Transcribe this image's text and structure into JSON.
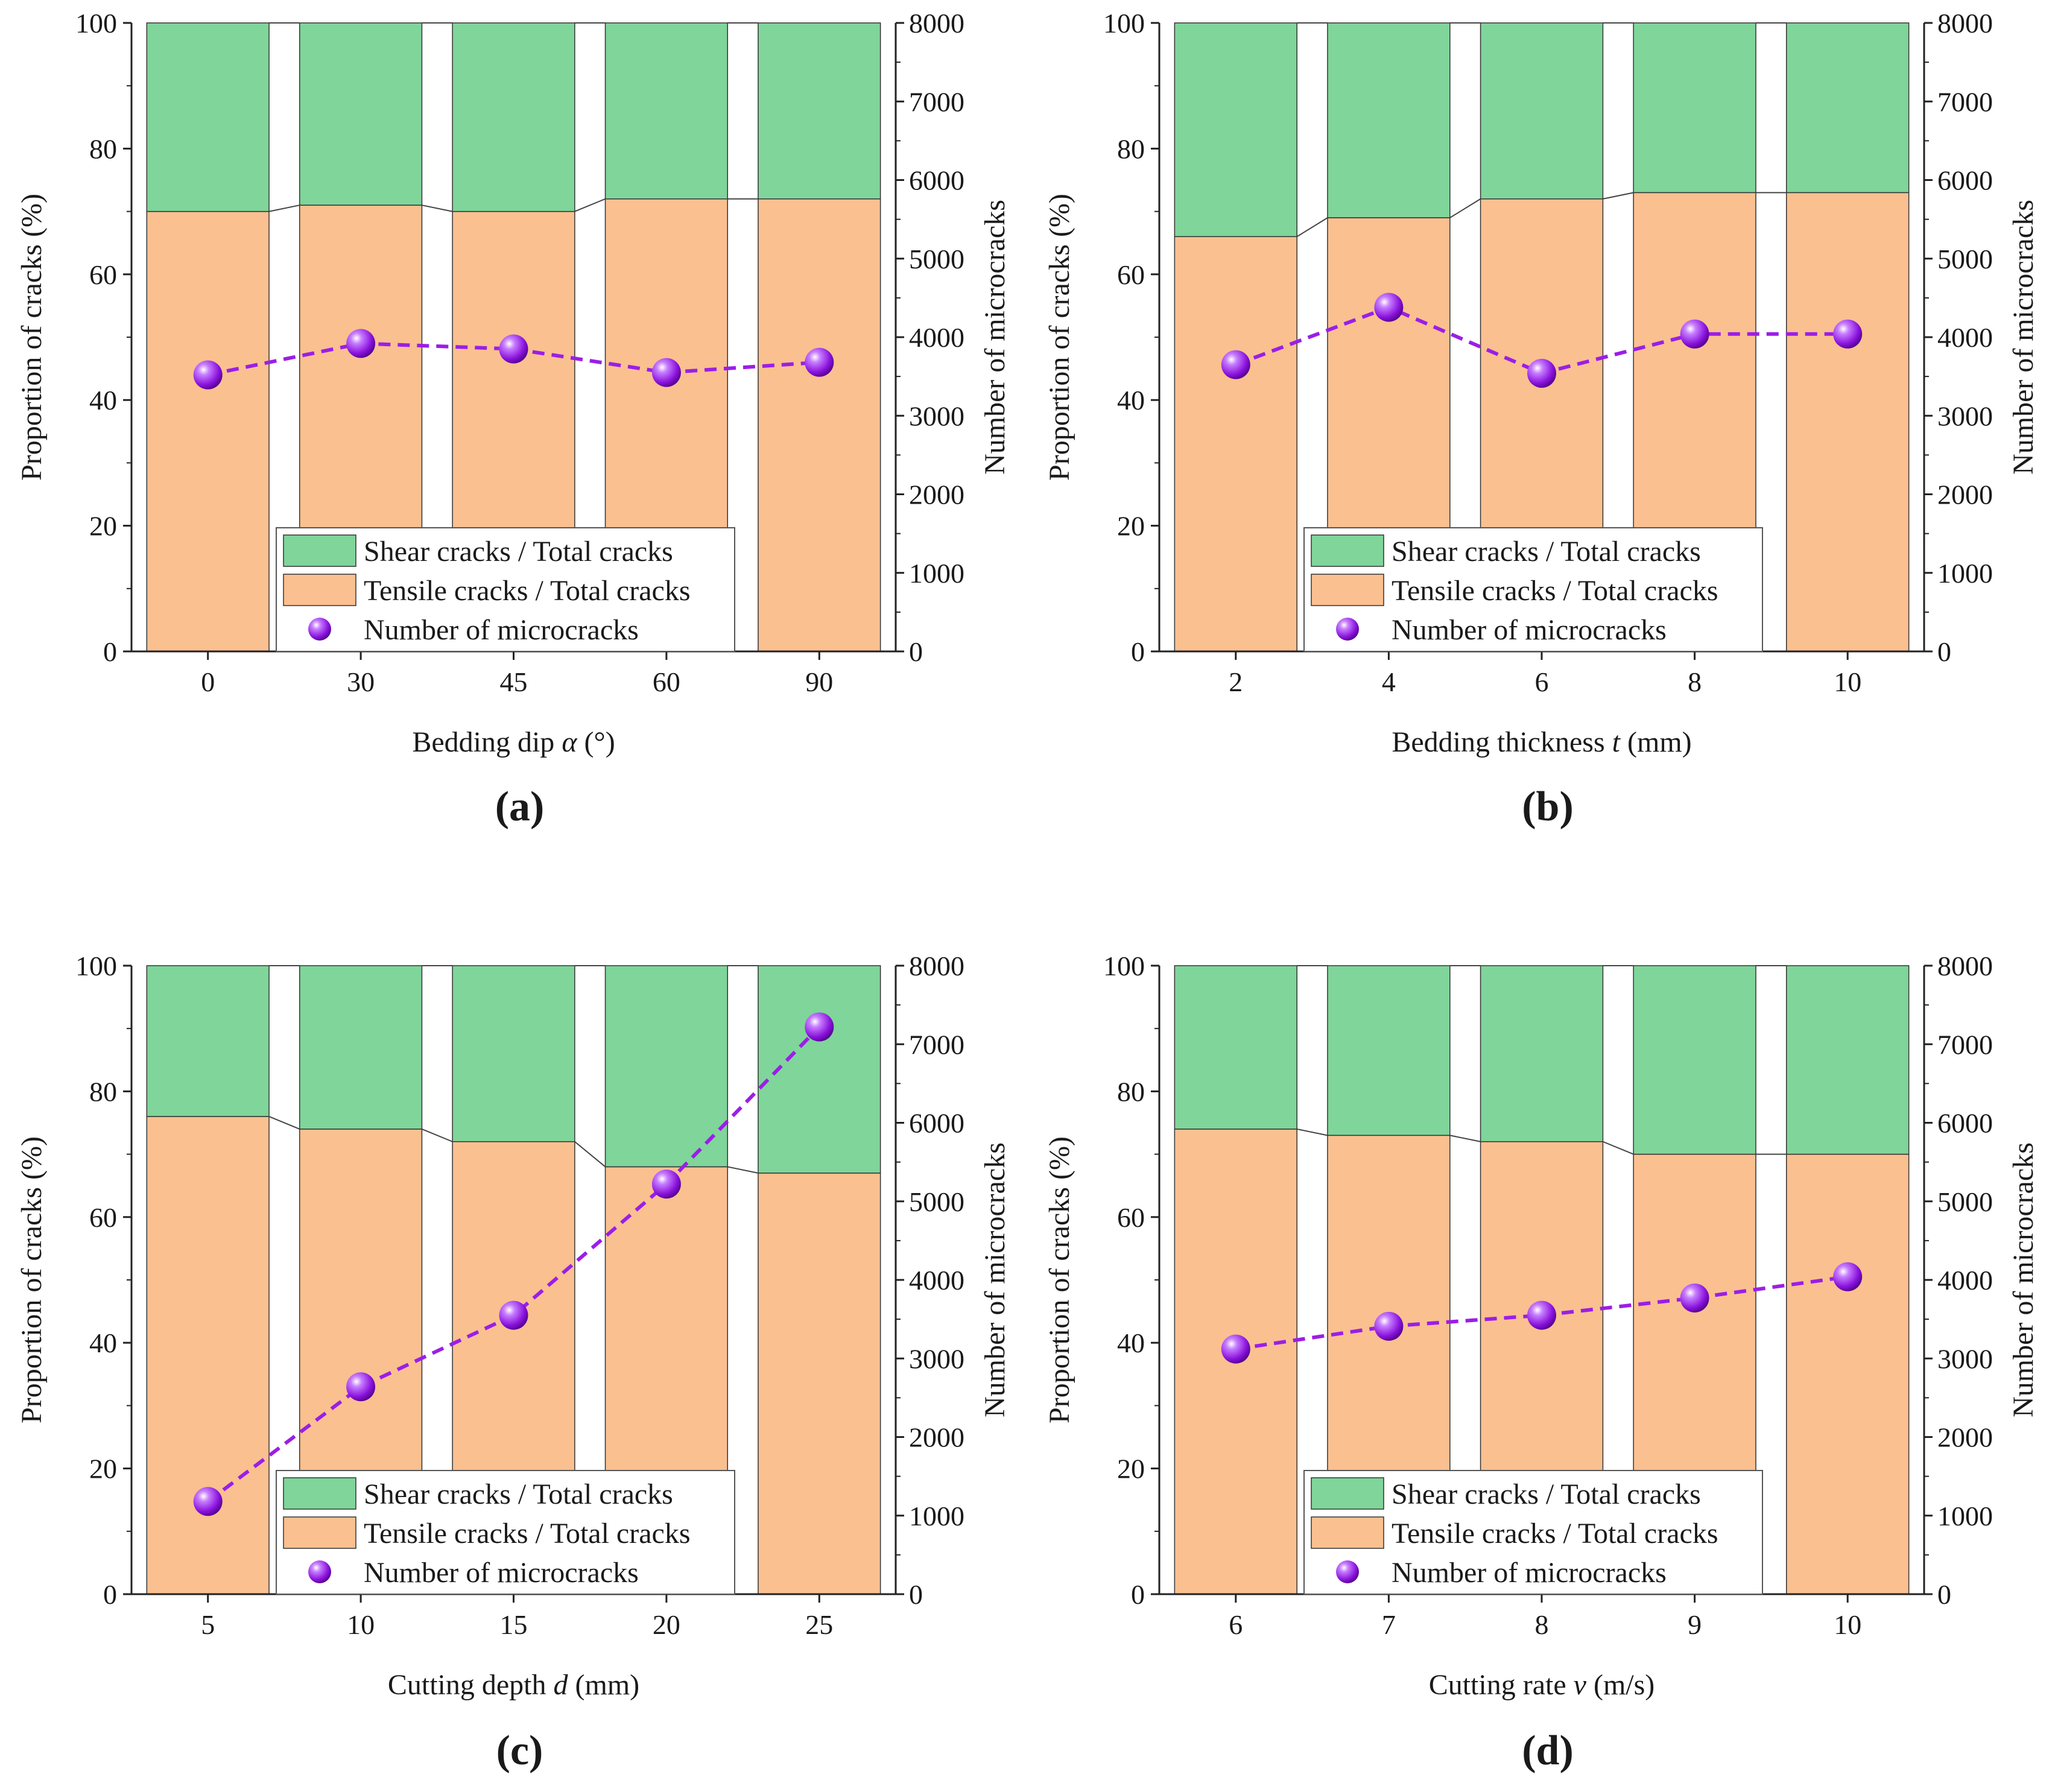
{
  "chart_data": [
    {
      "type": "bar",
      "panel_label": "(a)",
      "categories": [
        "0",
        "30",
        "45",
        "60",
        "90"
      ],
      "xlabel": {
        "prefix": "Bedding dip ",
        "var": "α",
        "suffix": " (°)"
      },
      "ylabel": "Proportion of cracks (%)",
      "y2label": "Number of microcracks",
      "ylim": [
        0,
        100
      ],
      "y2lim": [
        0,
        8000
      ],
      "yticks": [
        "0",
        "20",
        "40",
        "60",
        "80",
        "100"
      ],
      "y2ticks": [
        "0",
        "1000",
        "2000",
        "3000",
        "4000",
        "5000",
        "6000",
        "7000",
        "8000"
      ],
      "series": [
        {
          "name": "Tensile cracks / Total cracks",
          "kind": "stacked-bar",
          "color": "#FAC090",
          "values": [
            70,
            71,
            70,
            72,
            72
          ]
        },
        {
          "name": "Shear cracks / Total cracks",
          "kind": "stacked-bar",
          "color": "#7FD59A",
          "values": [
            30,
            29,
            30,
            28,
            28
          ]
        },
        {
          "name": "Number of microcracks",
          "kind": "dashed-line-markers",
          "axis": "right",
          "color": "#9B1EE6",
          "values": [
            3520,
            3920,
            3850,
            3550,
            3680
          ]
        }
      ],
      "legend": [
        "Shear cracks / Total cracks",
        "Tensile cracks / Total cracks",
        "Number of microcracks"
      ],
      "legend_position": "bottom-center"
    },
    {
      "type": "bar",
      "panel_label": "(b)",
      "categories": [
        "2",
        "4",
        "6",
        "8",
        "10"
      ],
      "xlabel": {
        "prefix": "Bedding thickness ",
        "var": "t",
        "suffix": " (mm)"
      },
      "ylabel": "Proportion of cracks (%)",
      "y2label": "Number of microcracks",
      "ylim": [
        0,
        100
      ],
      "y2lim": [
        0,
        8000
      ],
      "yticks": [
        "0",
        "20",
        "40",
        "60",
        "80",
        "100"
      ],
      "y2ticks": [
        "0",
        "1000",
        "2000",
        "3000",
        "4000",
        "5000",
        "6000",
        "7000",
        "8000"
      ],
      "series": [
        {
          "name": "Tensile cracks / Total cracks",
          "kind": "stacked-bar",
          "color": "#FAC090",
          "values": [
            66,
            69,
            72,
            73,
            73
          ]
        },
        {
          "name": "Shear cracks / Total cracks",
          "kind": "stacked-bar",
          "color": "#7FD59A",
          "values": [
            34,
            31,
            28,
            27,
            27
          ]
        },
        {
          "name": "Number of microcracks",
          "kind": "dashed-line-markers",
          "axis": "right",
          "color": "#9B1EE6",
          "values": [
            3650,
            4380,
            3540,
            4040,
            4040
          ]
        }
      ],
      "legend": [
        "Shear cracks / Total cracks",
        "Tensile cracks / Total cracks",
        "Number of microcracks"
      ],
      "legend_position": "bottom-center"
    },
    {
      "type": "bar",
      "panel_label": "(c)",
      "categories": [
        "5",
        "10",
        "15",
        "20",
        "25"
      ],
      "xlabel": {
        "prefix": "Cutting depth ",
        "var": "d",
        "suffix": " (mm)"
      },
      "ylabel": "Proportion of cracks (%)",
      "y2label": "Number of microcracks",
      "ylim": [
        0,
        100
      ],
      "y2lim": [
        0,
        8000
      ],
      "yticks": [
        "0",
        "20",
        "40",
        "60",
        "80",
        "100"
      ],
      "y2ticks": [
        "0",
        "1000",
        "2000",
        "3000",
        "4000",
        "5000",
        "6000",
        "7000",
        "8000"
      ],
      "series": [
        {
          "name": "Tensile cracks / Total cracks",
          "kind": "stacked-bar",
          "color": "#FAC090",
          "values": [
            76,
            74,
            72,
            68,
            67
          ]
        },
        {
          "name": "Shear cracks / Total cracks",
          "kind": "stacked-bar",
          "color": "#7FD59A",
          "values": [
            24,
            26,
            28,
            32,
            33
          ]
        },
        {
          "name": "Number of microcracks",
          "kind": "dashed-line-markers",
          "axis": "right",
          "color": "#9B1EE6",
          "values": [
            1180,
            2640,
            3550,
            5220,
            7220
          ]
        }
      ],
      "legend": [
        "Shear cracks / Total cracks",
        "Tensile cracks / Total cracks",
        "Number of microcracks"
      ],
      "legend_position": "bottom-center"
    },
    {
      "type": "bar",
      "panel_label": "(d)",
      "categories": [
        "6",
        "7",
        "8",
        "9",
        "10"
      ],
      "xlabel": {
        "prefix": "Cutting rate ",
        "var": "v",
        "suffix": " (m/s)"
      },
      "ylabel": "Proportion of cracks (%)",
      "y2label": "Number of microcracks",
      "ylim": [
        0,
        100
      ],
      "y2lim": [
        0,
        8000
      ],
      "yticks": [
        "0",
        "20",
        "40",
        "60",
        "80",
        "100"
      ],
      "y2ticks": [
        "0",
        "1000",
        "2000",
        "3000",
        "4000",
        "5000",
        "6000",
        "7000",
        "8000"
      ],
      "series": [
        {
          "name": "Tensile cracks / Total cracks",
          "kind": "stacked-bar",
          "color": "#FAC090",
          "values": [
            74,
            73,
            72,
            70,
            70
          ]
        },
        {
          "name": "Shear cracks / Total cracks",
          "kind": "stacked-bar",
          "color": "#7FD59A",
          "values": [
            26,
            27,
            28,
            30,
            30
          ]
        },
        {
          "name": "Number of microcracks",
          "kind": "dashed-line-markers",
          "axis": "right",
          "color": "#9B1EE6",
          "values": [
            3120,
            3410,
            3550,
            3770,
            4040
          ]
        }
      ],
      "legend": [
        "Shear cracks / Total cracks",
        "Tensile cracks / Total cracks",
        "Number of microcracks"
      ],
      "legend_position": "bottom-center"
    }
  ]
}
